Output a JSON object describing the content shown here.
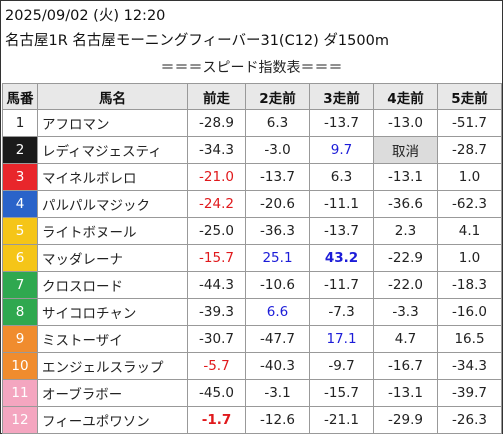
{
  "header": {
    "date_time": "2025/09/02 (火) 12:20",
    "race": "名古屋1R 名古屋モーニングフィーバー31(C12) ダ1500m"
  },
  "table_title": "＝＝＝スピード指数表＝＝＝",
  "columns": [
    "馬番",
    "馬名",
    "前走",
    "2走前",
    "3走前",
    "4走前",
    "5走前"
  ],
  "colors": {
    "frame_1": "#ffffff",
    "frame_2": "#1a1a1a",
    "frame_3": "#e8262b",
    "frame_4": "#2a63c9",
    "frame_5": "#f5c518",
    "frame_6": "#2fa84f",
    "frame_7": "#f08c2e",
    "frame_8": "#f4a6c0",
    "red_text": "#e0191c",
    "blue_text": "#1c1cd8"
  },
  "rows": [
    {
      "num": "1",
      "name": "アフロマン",
      "vals": [
        "-28.9",
        "6.3",
        "-13.7",
        "-13.0",
        "-51.7"
      ]
    },
    {
      "num": "2",
      "name": "レディマジェスティ",
      "vals": [
        "-34.3",
        "-3.0",
        "9.7",
        "取消",
        "-28.7"
      ]
    },
    {
      "num": "3",
      "name": "マイネルボレロ",
      "vals": [
        "-21.0",
        "-13.7",
        "6.3",
        "-13.1",
        "1.0"
      ]
    },
    {
      "num": "4",
      "name": "パルパルマジック",
      "vals": [
        "-24.2",
        "-20.6",
        "-11.1",
        "-36.6",
        "-62.3"
      ]
    },
    {
      "num": "5",
      "name": "ライトボヌール",
      "vals": [
        "-25.0",
        "-36.3",
        "-13.7",
        "2.3",
        "4.1"
      ]
    },
    {
      "num": "6",
      "name": "マッダレーナ",
      "vals": [
        "-15.7",
        "25.1",
        "43.2",
        "-22.9",
        "1.0"
      ]
    },
    {
      "num": "7",
      "name": "クロスロード",
      "vals": [
        "-44.3",
        "-10.6",
        "-11.7",
        "-22.0",
        "-18.3"
      ]
    },
    {
      "num": "8",
      "name": "サイコロチャン",
      "vals": [
        "-39.3",
        "6.6",
        "-7.3",
        "-3.3",
        "-16.0"
      ]
    },
    {
      "num": "9",
      "name": "ミストーザイ",
      "vals": [
        "-30.7",
        "-47.7",
        "17.1",
        "4.7",
        "16.5"
      ]
    },
    {
      "num": "10",
      "name": "エンジェルスラップ",
      "vals": [
        "-5.7",
        "-40.3",
        "-9.7",
        "-16.7",
        "-34.3"
      ]
    },
    {
      "num": "11",
      "name": "オーブラボー",
      "vals": [
        "-45.0",
        "-3.1",
        "-15.7",
        "-13.1",
        "-39.7"
      ]
    },
    {
      "num": "12",
      "name": "フィーユポワソン",
      "vals": [
        "-1.7",
        "-12.6",
        "-21.1",
        "-29.9",
        "-26.3"
      ]
    }
  ]
}
